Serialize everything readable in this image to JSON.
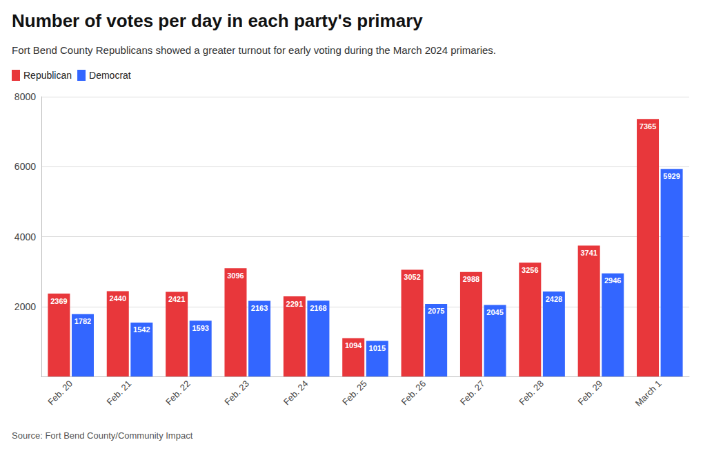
{
  "chart_data": {
    "type": "bar",
    "title": "Number of votes per day in each party's primary",
    "subtitle": "Fort Bend County Republicans showed a greater turnout for early voting during the March 2024 primaries.",
    "source": "Source: Fort Bend County/Community Impact",
    "categories": [
      "Feb. 20",
      "Feb. 21",
      "Feb. 22",
      "Feb. 23",
      "Feb. 24",
      "Feb. 25",
      "Feb. 26",
      "Feb. 27",
      "Feb. 28",
      "Feb. 29",
      "March 1"
    ],
    "series": [
      {
        "name": "Republican",
        "color": "#e8373b",
        "values": [
          2369,
          2440,
          2421,
          3096,
          2291,
          1094,
          3052,
          2988,
          3256,
          3741,
          7365
        ]
      },
      {
        "name": "Democrat",
        "color": "#3366ff",
        "values": [
          1782,
          1542,
          1593,
          2163,
          2168,
          1015,
          2075,
          2045,
          2428,
          2946,
          5929
        ]
      }
    ],
    "ylim": [
      0,
      8000
    ],
    "yticks": [
      2000,
      4000,
      6000,
      8000
    ],
    "grid": true,
    "legend": "upper left",
    "data_labels": true
  }
}
